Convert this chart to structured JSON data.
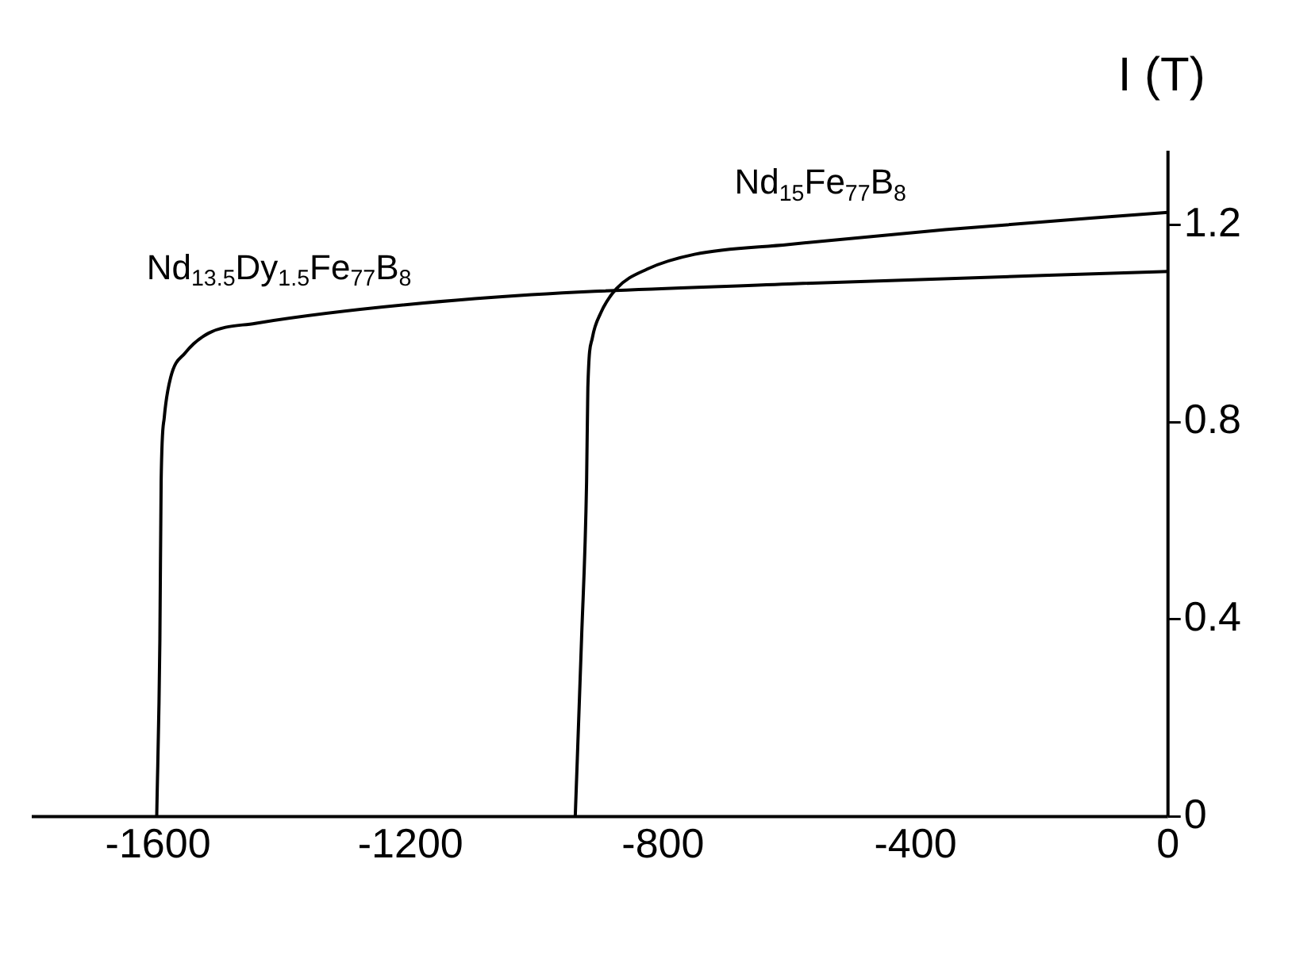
{
  "chart_data": {
    "type": "line",
    "ylabel": "I (T)",
    "xlim": [
      -1800,
      0
    ],
    "ylim": [
      0,
      1.35
    ],
    "xticks": [
      -1600,
      -1200,
      -800,
      -400,
      0
    ],
    "yticks": [
      0,
      0.4,
      0.8,
      1.2
    ],
    "grid": false,
    "legend": false,
    "marker": "none",
    "line_style": "solid",
    "series": [
      {
        "name": "Nd$_{15}$Fe$_{77}$B$_{8}$",
        "color": "#000000",
        "x": [
          -939,
          -929,
          -921,
          -919,
          -912,
          -899,
          -874,
          -825,
          -750,
          -601,
          -353,
          0
        ],
        "values": [
          0,
          0.36,
          0.68,
          0.87,
          0.97,
          1.02,
          1.07,
          1.11,
          1.14,
          1.16,
          1.19,
          1.225
        ]
      },
      {
        "name": "Nd$_{13.5}$Dy$_{1.5}$Fe$_{77}$B$_{8}$",
        "color": "#000000",
        "x": [
          -1602,
          -1597,
          -1595,
          -1590,
          -1580,
          -1557,
          -1520,
          -1446,
          -1098,
          -601,
          0
        ],
        "values": [
          0,
          0.36,
          0.68,
          0.81,
          0.89,
          0.94,
          0.98,
          1.0,
          1.05,
          1.08,
          1.105
        ]
      }
    ]
  }
}
